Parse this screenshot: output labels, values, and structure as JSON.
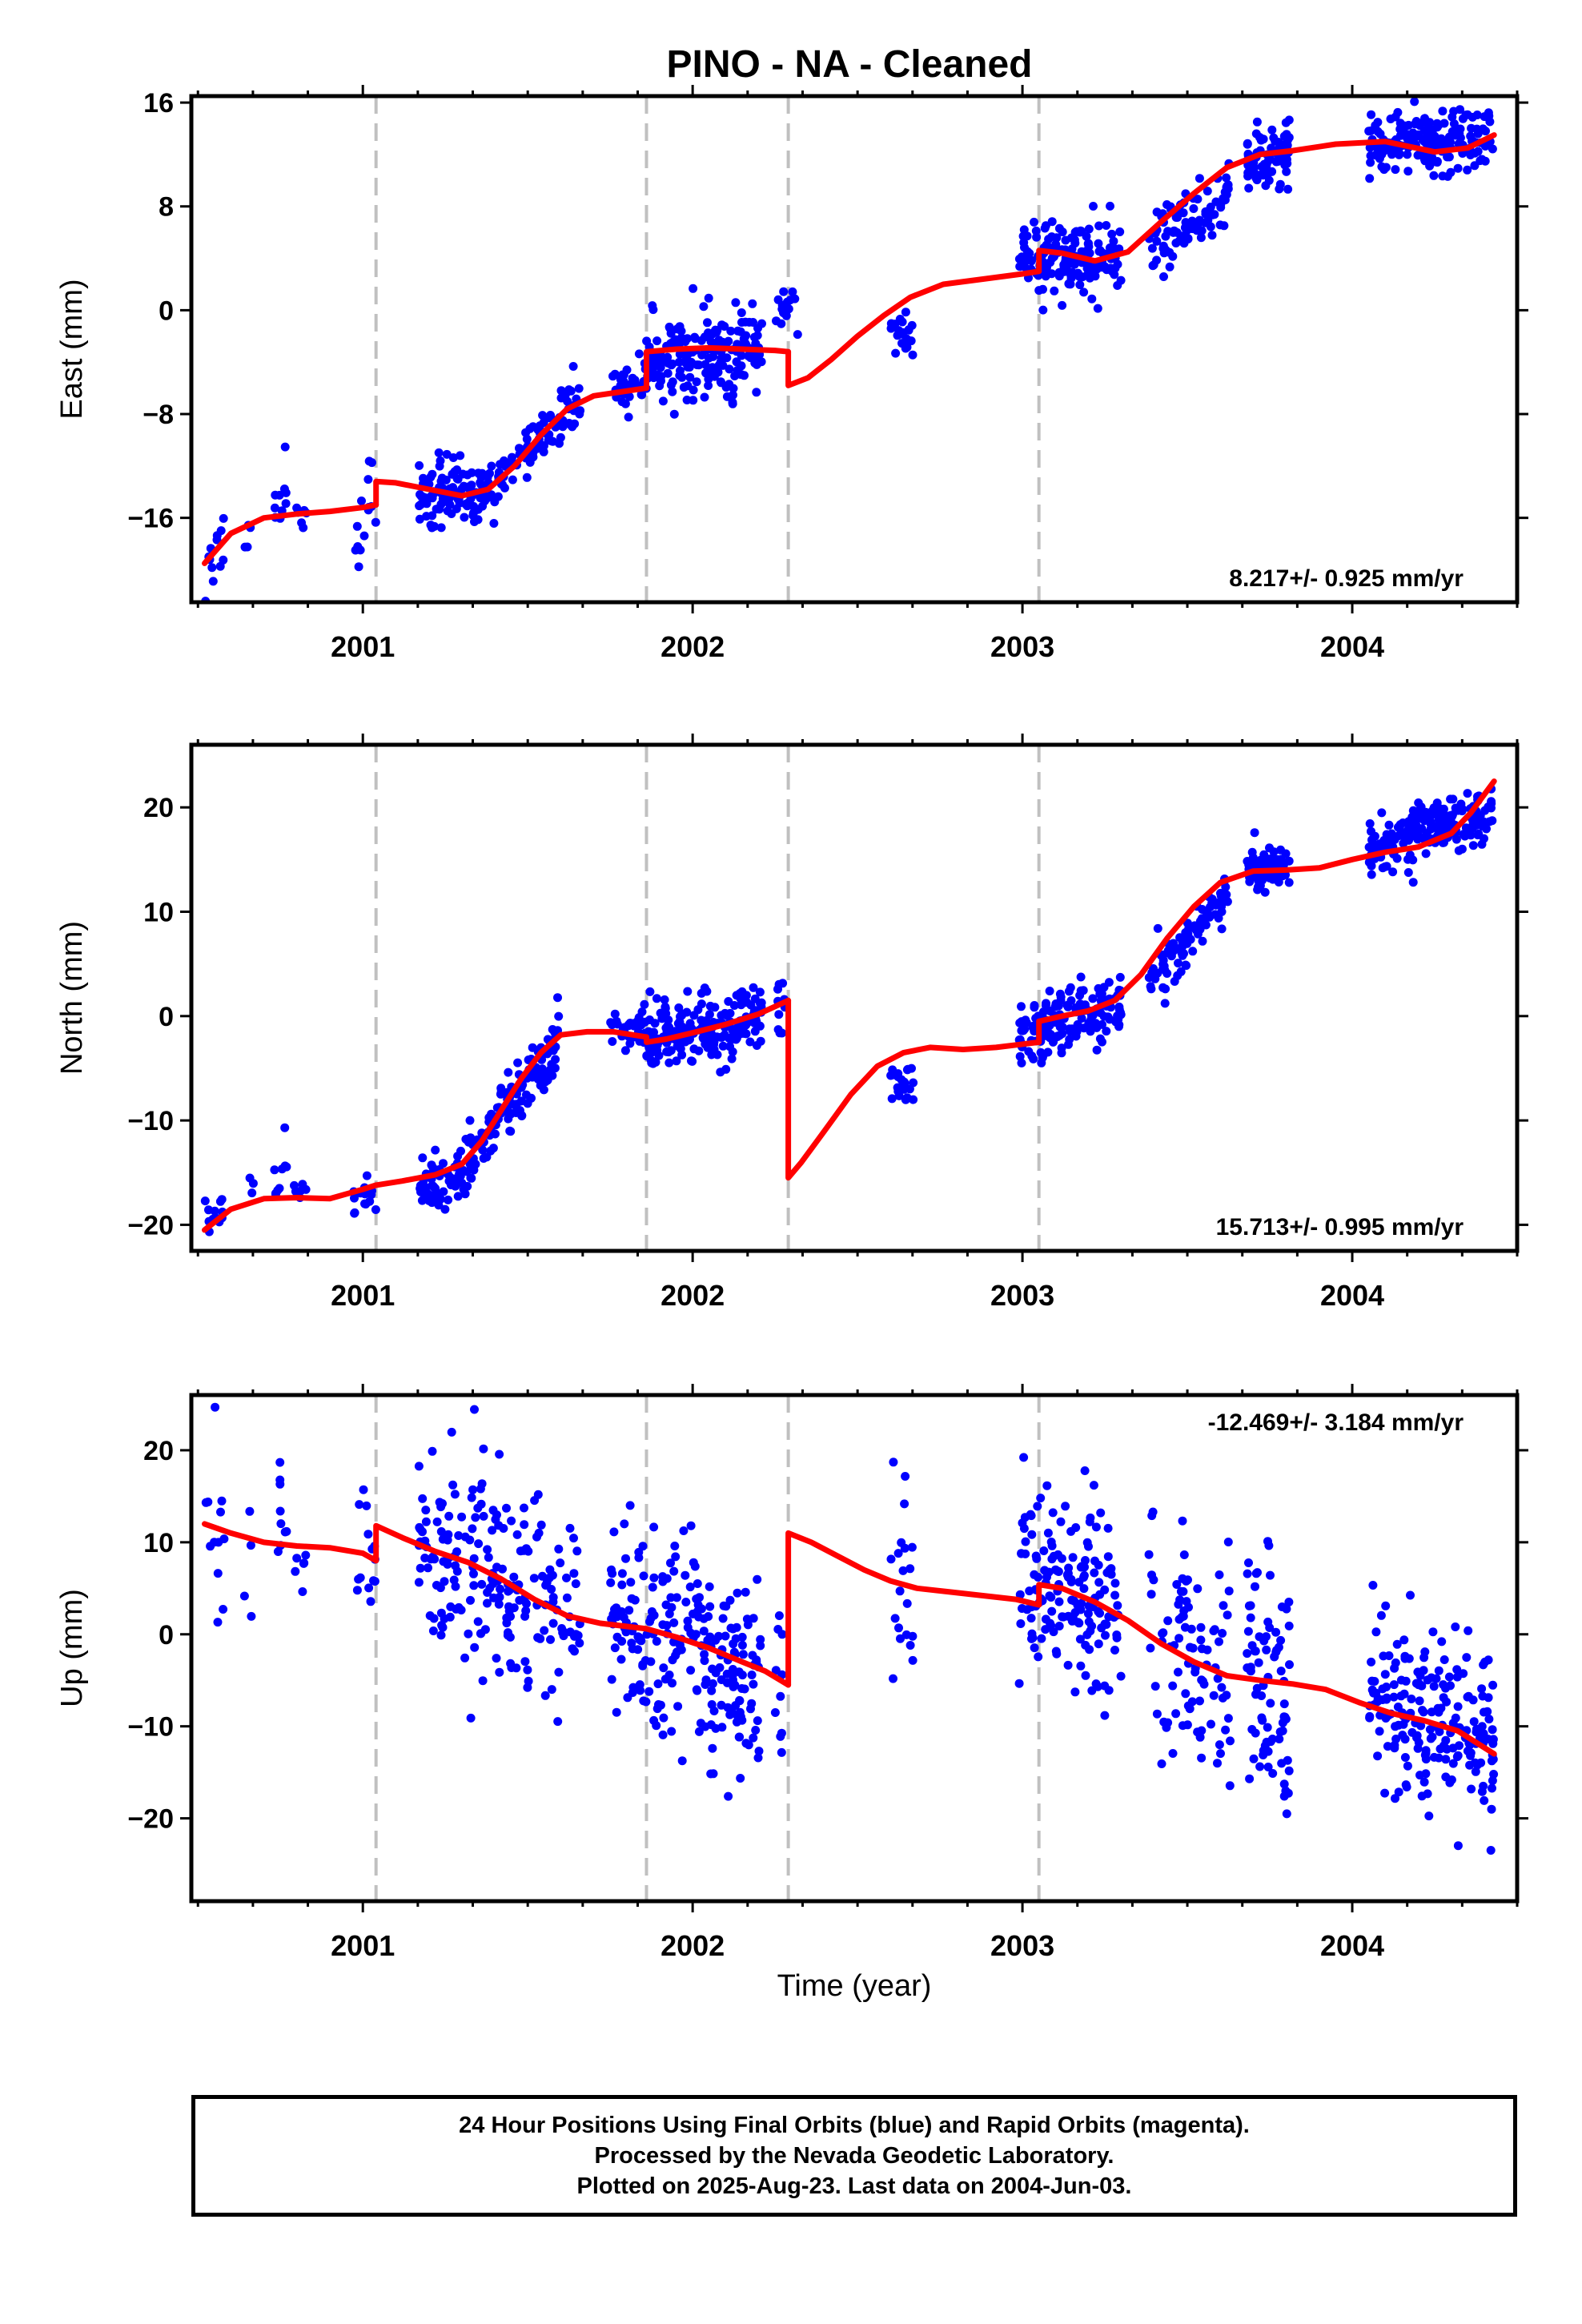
{
  "title": "PINO  - NA - Cleaned",
  "footer": {
    "line1": "24 Hour Positions Using Final Orbits (blue) and Rapid Orbits (magenta).",
    "line2": "Processed by the Nevada Geodetic Laboratory.",
    "line3": "Plotted on 2025-Aug-23. Last data on 2004-Jun-03."
  },
  "colors": {
    "points": "#0000ff",
    "model": "#ff0000",
    "breaks": "#c0c0c0",
    "frame": "#000000"
  },
  "chart_data": [
    {
      "type": "scatter",
      "name": "east",
      "ylabel": "East (mm)",
      "xlabel": "",
      "xlim": [
        2000.48,
        2004.5
      ],
      "ylim": [
        -22.5,
        16.5
      ],
      "yticks": [
        -16,
        -8,
        0,
        8,
        16
      ],
      "xticks": [
        2001,
        2002,
        2003,
        2004
      ],
      "xticklabels": [
        "2001",
        "2002",
        "2003",
        "2004"
      ],
      "breaks": [
        2001.04,
        2001.86,
        2002.29,
        2003.05
      ],
      "velocity": "8.217+/- 0.925 mm/yr",
      "velocity_pos": "bottom-right",
      "clusters": [
        {
          "x": [
            2000.52,
            2000.58
          ],
          "y": [
            -19.5,
            -17.5
          ],
          "s": 1.5,
          "n": 12
        },
        {
          "x": [
            2000.64,
            2000.67
          ],
          "y": [
            -18.0,
            -17.0
          ],
          "s": 0.7,
          "n": 4
        },
        {
          "x": [
            2000.73,
            2000.77
          ],
          "y": [
            -15.0,
            -15.0
          ],
          "s": 1.5,
          "n": 10
        },
        {
          "x": [
            2000.79,
            2000.83
          ],
          "y": [
            -15.5,
            -15.5
          ],
          "s": 0.8,
          "n": 6
        },
        {
          "x": [
            2000.97,
            2001.04
          ],
          "y": [
            -16.0,
            -15.0
          ],
          "s": 2.5,
          "n": 14
        },
        {
          "x": [
            2001.17,
            2001.4
          ],
          "y": [
            -14.5,
            -14.0
          ],
          "s": 1.3,
          "n": 110
        },
        {
          "x": [
            2001.4,
            2001.66
          ],
          "y": [
            -13.0,
            -7.0
          ],
          "s": 1.2,
          "n": 85
        },
        {
          "x": [
            2001.75,
            2001.86
          ],
          "y": [
            -6.0,
            -5.5
          ],
          "s": 1.0,
          "n": 35
        },
        {
          "x": [
            2001.86,
            2002.21
          ],
          "y": [
            -4.0,
            -3.2
          ],
          "s": 1.6,
          "n": 200
        },
        {
          "x": [
            2002.25,
            2002.33
          ],
          "y": [
            0.0,
            0.5
          ],
          "s": 1.2,
          "n": 14
        },
        {
          "x": [
            2002.6,
            2002.67
          ],
          "y": [
            -1.5,
            -2.0
          ],
          "s": 0.7,
          "n": 22
        },
        {
          "x": [
            2002.99,
            2003.3
          ],
          "y": [
            3.5,
            4.0
          ],
          "s": 1.4,
          "n": 160
        },
        {
          "x": [
            2003.38,
            2003.63
          ],
          "y": [
            5.0,
            9.0
          ],
          "s": 1.2,
          "n": 90
        },
        {
          "x": [
            2003.68,
            2003.81
          ],
          "y": [
            11.0,
            12.0
          ],
          "s": 1.2,
          "n": 80
        },
        {
          "x": [
            2004.05,
            2004.43
          ],
          "y": [
            13.0,
            13.0
          ],
          "s": 1.1,
          "n": 200
        }
      ],
      "model": [
        {
          "x": [
            2000.52,
            2000.6,
            2000.7,
            2000.8,
            2000.9,
            2001.0,
            2001.04
          ],
          "y": [
            -19.5,
            -17.2,
            -16.0,
            -15.7,
            -15.5,
            -15.2,
            -15.0
          ]
        },
        {
          "x": [
            2001.04,
            2001.1,
            2001.2,
            2001.3,
            2001.38,
            2001.46,
            2001.54,
            2001.62,
            2001.7,
            2001.78,
            2001.86
          ],
          "y": [
            -13.2,
            -13.3,
            -13.8,
            -14.3,
            -13.8,
            -12.0,
            -9.6,
            -7.6,
            -6.6,
            -6.3,
            -6.0
          ]
        },
        {
          "x": [
            2001.86,
            2001.95,
            2002.05,
            2002.15,
            2002.25,
            2002.29
          ],
          "y": [
            -3.2,
            -3.0,
            -2.9,
            -3.0,
            -3.1,
            -3.2
          ]
        },
        {
          "x": [
            2002.29,
            2002.35,
            2002.42,
            2002.5,
            2002.58,
            2002.66,
            2002.76,
            2002.88,
            2003.0,
            2003.05
          ],
          "y": [
            -5.8,
            -5.2,
            -3.8,
            -2.0,
            -0.4,
            1.0,
            2.0,
            2.4,
            2.8,
            3.0
          ]
        },
        {
          "x": [
            2003.05,
            2003.12,
            2003.22,
            2003.32,
            2003.42,
            2003.52,
            2003.62,
            2003.72,
            2003.82,
            2003.95,
            2004.1,
            2004.25,
            2004.35,
            2004.43
          ],
          "y": [
            4.6,
            4.4,
            3.8,
            4.5,
            6.8,
            9.0,
            11.0,
            12.0,
            12.3,
            12.8,
            13.0,
            12.2,
            12.5,
            13.5
          ]
        }
      ]
    },
    {
      "type": "scatter",
      "name": "north",
      "ylabel": "North (mm)",
      "xlabel": "",
      "xlim": [
        2000.48,
        2004.5
      ],
      "ylim": [
        -22.5,
        26.0
      ],
      "yticks": [
        -20,
        -10,
        0,
        10,
        20
      ],
      "xticks": [
        2001,
        2002,
        2003,
        2004
      ],
      "xticklabels": [
        "2001",
        "2002",
        "2003",
        "2004"
      ],
      "breaks": [
        2001.04,
        2001.86,
        2002.29,
        2003.05
      ],
      "velocity": "15.713+/- 0.995 mm/yr",
      "velocity_pos": "bottom-right",
      "clusters": [
        {
          "x": [
            2000.52,
            2000.58
          ],
          "y": [
            -19.5,
            -18.5
          ],
          "s": 1.2,
          "n": 12
        },
        {
          "x": [
            2000.64,
            2000.67
          ],
          "y": [
            -16.5,
            -16.5
          ],
          "s": 0.5,
          "n": 3
        },
        {
          "x": [
            2000.73,
            2000.77
          ],
          "y": [
            -15.5,
            -15.5
          ],
          "s": 2.0,
          "n": 9
        },
        {
          "x": [
            2000.79,
            2000.83
          ],
          "y": [
            -17.0,
            -17.0
          ],
          "s": 1.0,
          "n": 6
        },
        {
          "x": [
            2000.97,
            2001.04
          ],
          "y": [
            -18.0,
            -17.0
          ],
          "s": 1.8,
          "n": 14
        },
        {
          "x": [
            2001.17,
            2001.32
          ],
          "y": [
            -16.0,
            -15.0
          ],
          "s": 1.3,
          "n": 70
        },
        {
          "x": [
            2001.32,
            2001.6
          ],
          "y": [
            -14.0,
            -2.0
          ],
          "s": 1.6,
          "n": 120
        },
        {
          "x": [
            2001.75,
            2001.86
          ],
          "y": [
            -0.5,
            -1.0
          ],
          "s": 1.2,
          "n": 35
        },
        {
          "x": [
            2001.86,
            2002.21
          ],
          "y": [
            -2.5,
            0.0
          ],
          "s": 1.6,
          "n": 200
        },
        {
          "x": [
            2002.25,
            2002.28
          ],
          "y": [
            1.0,
            1.0
          ],
          "s": 2.0,
          "n": 10
        },
        {
          "x": [
            2002.6,
            2002.67
          ],
          "y": [
            -6.0,
            -6.5
          ],
          "s": 1.0,
          "n": 22
        },
        {
          "x": [
            2002.99,
            2003.3
          ],
          "y": [
            -2.0,
            1.0
          ],
          "s": 1.4,
          "n": 160
        },
        {
          "x": [
            2003.38,
            2003.63
          ],
          "y": [
            3.0,
            12.0
          ],
          "s": 1.3,
          "n": 90
        },
        {
          "x": [
            2003.68,
            2003.81
          ],
          "y": [
            14.0,
            14.0
          ],
          "s": 1.0,
          "n": 80
        },
        {
          "x": [
            2004.05,
            2004.43
          ],
          "y": [
            16.0,
            19.5
          ],
          "s": 1.3,
          "n": 200
        }
      ],
      "model": [
        {
          "x": [
            2000.52,
            2000.6,
            2000.7,
            2000.8,
            2000.9,
            2001.0,
            2001.04
          ],
          "y": [
            -20.5,
            -18.5,
            -17.5,
            -17.4,
            -17.5,
            -16.6,
            -16.2
          ]
        },
        {
          "x": [
            2001.04,
            2001.12,
            2001.22,
            2001.3,
            2001.36,
            2001.42,
            2001.48,
            2001.54,
            2001.6,
            2001.68,
            2001.76,
            2001.86
          ],
          "y": [
            -16.2,
            -15.8,
            -15.2,
            -14.2,
            -12.0,
            -9.0,
            -6.0,
            -3.5,
            -1.8,
            -1.5,
            -1.5,
            -2.0
          ]
        },
        {
          "x": [
            2001.86,
            2001.92,
            2002.0,
            2002.1,
            2002.2,
            2002.29
          ],
          "y": [
            -2.5,
            -2.2,
            -1.6,
            -0.8,
            0.2,
            1.5
          ]
        },
        {
          "x": [
            2002.29,
            2002.33,
            2002.4,
            2002.48,
            2002.56,
            2002.64,
            2002.72,
            2002.82,
            2002.92,
            2003.05
          ],
          "y": [
            -15.5,
            -14.0,
            -11.0,
            -7.5,
            -4.8,
            -3.5,
            -3.0,
            -3.2,
            -3.0,
            -2.5
          ]
        },
        {
          "x": [
            2003.05,
            2003.12,
            2003.2,
            2003.28,
            2003.36,
            2003.44,
            2003.52,
            2003.6,
            2003.7,
            2003.8,
            2003.9,
            2004.0,
            2004.1,
            2004.2,
            2004.3,
            2004.36,
            2004.43
          ],
          "y": [
            -0.5,
            0.0,
            0.5,
            1.5,
            4.0,
            7.5,
            10.5,
            12.8,
            13.9,
            14.0,
            14.2,
            15.0,
            15.7,
            16.2,
            17.5,
            19.5,
            22.5
          ]
        }
      ]
    },
    {
      "type": "scatter",
      "name": "up",
      "ylabel": "Up (mm)",
      "xlabel": "Time (year)",
      "xlim": [
        2000.48,
        2004.5
      ],
      "ylim": [
        -29.0,
        26.0
      ],
      "yticks": [
        -20,
        -10,
        0,
        10,
        20
      ],
      "xticks": [
        2001,
        2002,
        2003,
        2004
      ],
      "xticklabels": [
        "2001",
        "2002",
        "2003",
        "2004"
      ],
      "breaks": [
        2001.04,
        2001.86,
        2002.29,
        2003.05
      ],
      "velocity": "-12.469+/- 3.184 mm/yr",
      "velocity_pos": "top-right",
      "clusters": [
        {
          "x": [
            2000.52,
            2000.58
          ],
          "y": [
            11.0,
            10.0
          ],
          "s": 6.0,
          "n": 12
        },
        {
          "x": [
            2000.64,
            2000.67
          ],
          "y": [
            8.0,
            8.0
          ],
          "s": 4.0,
          "n": 4
        },
        {
          "x": [
            2000.73,
            2000.77
          ],
          "y": [
            15.0,
            15.0
          ],
          "s": 5.0,
          "n": 9
        },
        {
          "x": [
            2000.79,
            2000.83
          ],
          "y": [
            10.0,
            8.0
          ],
          "s": 6.0,
          "n": 6
        },
        {
          "x": [
            2000.97,
            2001.04
          ],
          "y": [
            9.0,
            8.0
          ],
          "s": 4.0,
          "n": 14
        },
        {
          "x": [
            2001.17,
            2001.66
          ],
          "y": [
            9.0,
            3.0
          ],
          "s": 5.5,
          "n": 200
        },
        {
          "x": [
            2001.75,
            2002.21
          ],
          "y": [
            2.0,
            -4.0
          ],
          "s": 5.5,
          "n": 230
        },
        {
          "x": [
            2002.25,
            2002.28
          ],
          "y": [
            -4.0,
            -6.0
          ],
          "s": 4.0,
          "n": 10
        },
        {
          "x": [
            2002.6,
            2002.67
          ],
          "y": [
            5.0,
            6.0
          ],
          "s": 5.0,
          "n": 20
        },
        {
          "x": [
            2002.99,
            2003.3
          ],
          "y": [
            6.0,
            2.0
          ],
          "s": 5.0,
          "n": 160
        },
        {
          "x": [
            2003.38,
            2003.63
          ],
          "y": [
            2.0,
            -4.0
          ],
          "s": 6.0,
          "n": 90
        },
        {
          "x": [
            2003.68,
            2003.81
          ],
          "y": [
            -4.0,
            -7.0
          ],
          "s": 6.0,
          "n": 80
        },
        {
          "x": [
            2004.05,
            2004.43
          ],
          "y": [
            -7.0,
            -11.0
          ],
          "s": 4.5,
          "n": 200
        }
      ],
      "model": [
        {
          "x": [
            2000.52,
            2000.6,
            2000.7,
            2000.8,
            2000.9,
            2001.0,
            2001.04
          ],
          "y": [
            12.0,
            11.0,
            10.0,
            9.6,
            9.4,
            8.8,
            8.0
          ]
        },
        {
          "x": [
            2001.04,
            2001.12,
            2001.22,
            2001.32,
            2001.42,
            2001.52,
            2001.62,
            2001.72,
            2001.86
          ],
          "y": [
            11.8,
            10.5,
            9.0,
            7.8,
            6.0,
            3.8,
            2.0,
            1.2,
            0.6
          ]
        },
        {
          "x": [
            2001.86,
            2001.95,
            2002.05,
            2002.15,
            2002.22,
            2002.29
          ],
          "y": [
            0.6,
            -0.3,
            -1.5,
            -3.0,
            -4.0,
            -5.5
          ]
        },
        {
          "x": [
            2002.29,
            2002.36,
            2002.44,
            2002.52,
            2002.6,
            2002.68,
            2002.78,
            2002.88,
            2002.98,
            2003.05
          ],
          "y": [
            11.0,
            10.0,
            8.5,
            7.0,
            5.8,
            5.0,
            4.6,
            4.2,
            3.8,
            3.2
          ]
        },
        {
          "x": [
            2003.05,
            2003.12,
            2003.22,
            2003.32,
            2003.42,
            2003.52,
            2003.62,
            2003.72,
            2003.82,
            2003.92,
            2004.02,
            2004.12,
            2004.22,
            2004.32,
            2004.43
          ],
          "y": [
            5.4,
            5.0,
            3.5,
            1.5,
            -1.0,
            -3.0,
            -4.5,
            -5.0,
            -5.4,
            -6.0,
            -7.4,
            -8.6,
            -9.4,
            -10.5,
            -13.0
          ]
        }
      ]
    }
  ]
}
